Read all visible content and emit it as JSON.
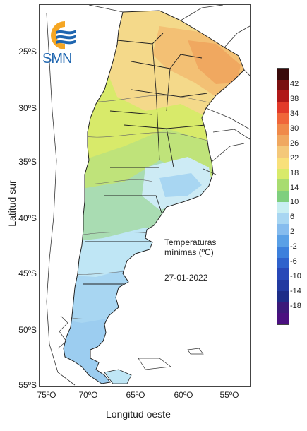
{
  "map": {
    "y_axis_title": "Latitud sur",
    "x_axis_title": "Longitud oeste",
    "lat_ticks": [
      "25ºS",
      "30ºS",
      "35ºS",
      "40ºS",
      "45ºS",
      "50ºS",
      "55ºS"
    ],
    "lon_ticks": [
      "75ºO",
      "70ºO",
      "65ºO",
      "60ºO",
      "55ºO"
    ],
    "annotation_line1": "Temperaturas",
    "annotation_line2": "mínimas (ºC)",
    "date": "27-01-2022"
  },
  "logo": {
    "text": "SMN",
    "colors": {
      "orange": "#f5a623",
      "blue": "#1f66b0"
    }
  },
  "legend": {
    "labels": [
      "42",
      "38",
      "34",
      "30",
      "26",
      "22",
      "18",
      "14",
      "10",
      "6",
      "2",
      "-2",
      "-6",
      "-10",
      "-14",
      "-18"
    ],
    "colors": [
      "#3a0a0a",
      "#7a1010",
      "#b01818",
      "#e23a2a",
      "#f0663a",
      "#f08a4a",
      "#f0a860",
      "#f4c87a",
      "#f8e07a",
      "#d8ea6a",
      "#a8dc70",
      "#7fcf7e",
      "#c8eef2",
      "#a8d6f2",
      "#86bcee",
      "#5aa0e6",
      "#3d80dc",
      "#2f62cc",
      "#2848b8",
      "#223aa0",
      "#1d2d88",
      "#3b1a7a",
      "#4a1080"
    ]
  }
}
